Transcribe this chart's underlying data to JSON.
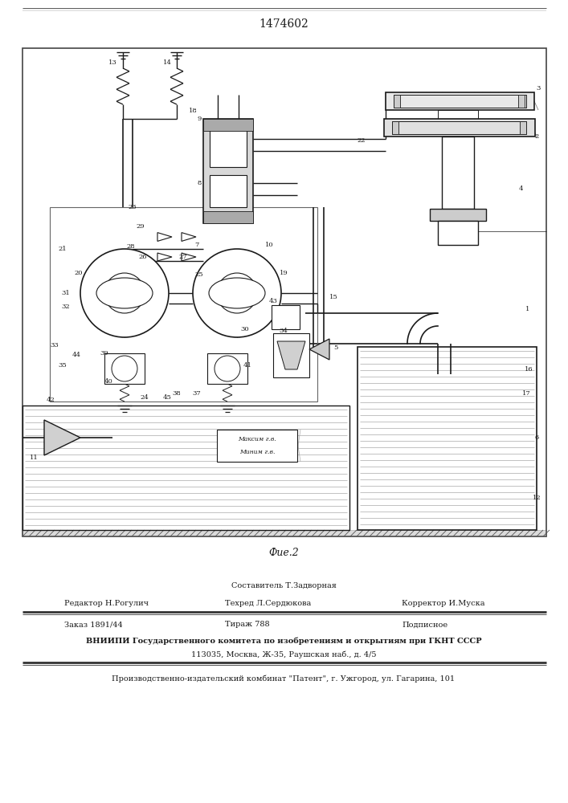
{
  "patent_number": "1474602",
  "fig_label": "Фие.2",
  "footer": {
    "sestavitel": "Составитель Т.Задворная",
    "redaktor": "Редактор Н.Рогулич",
    "tehred": "Техред Л.Сердюкова",
    "korrektor": "Корректор И.Муска",
    "zakaz": "Заказ 1891/44",
    "tirazh": "Тираж 788",
    "podpisnoe": "Подписное",
    "vniip1": "ВНИИПИ Государственного комитета по изобретениям и открытиям при ГКНТ СССР",
    "vniip2": "113035, Москва, Ж-35, Раушская наб., д. 4/5",
    "patent": "Производственно-издательский комбинат \"Патент\", г. Ужгород, ул. Гагарина, 101"
  },
  "bg_color": "#f5f5f0",
  "dc": "#1a1a1a"
}
